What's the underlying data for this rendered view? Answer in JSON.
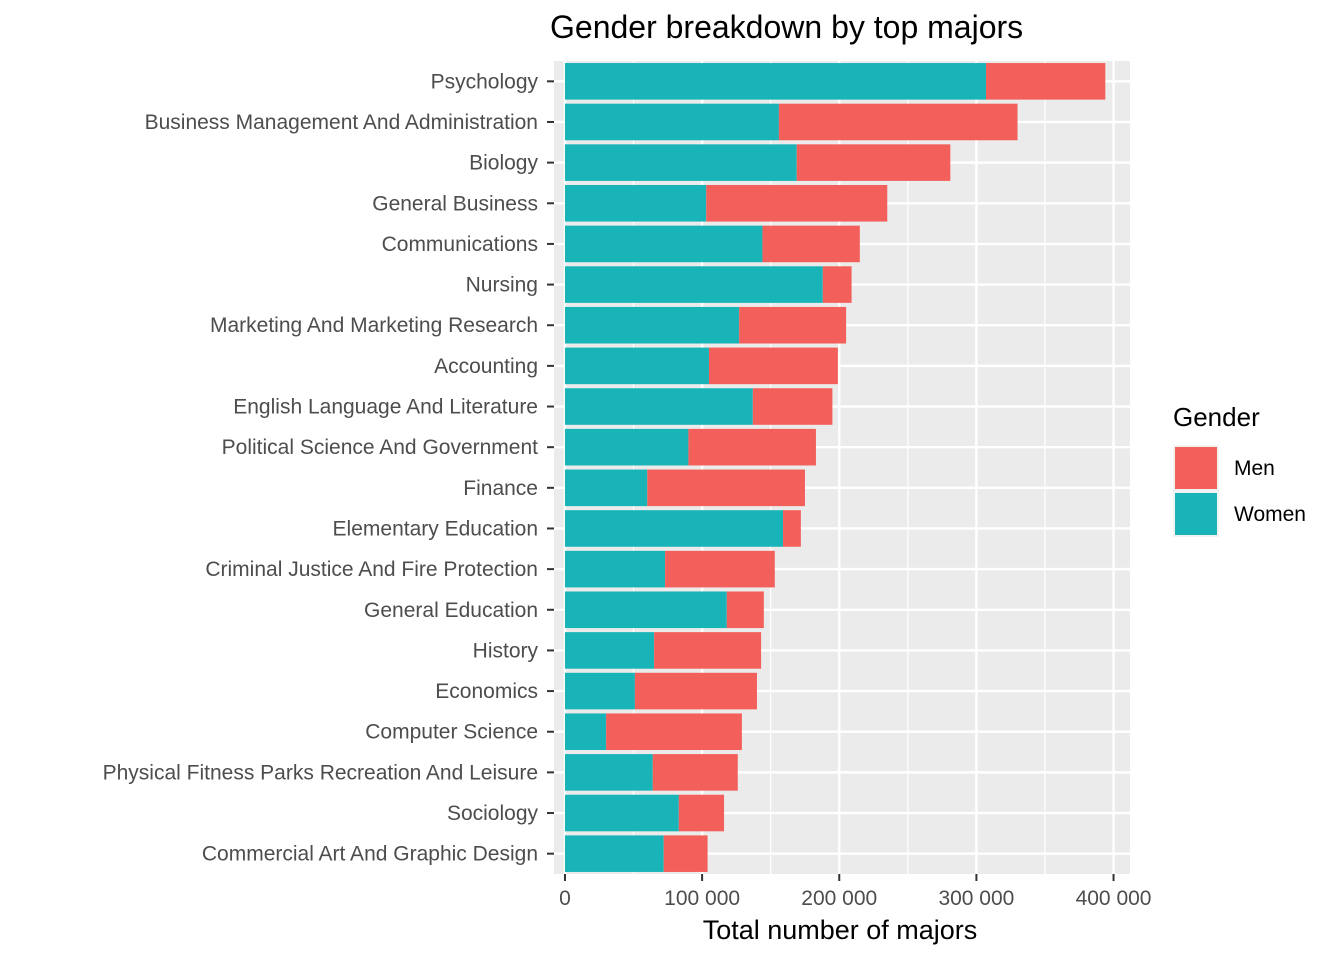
{
  "chart_data": {
    "type": "bar",
    "orientation": "horizontal",
    "stacked": true,
    "title": "Gender breakdown by top majors",
    "xlabel": "Total number of majors",
    "ylabel": "",
    "xlim": [
      -8000,
      412000
    ],
    "x_ticks": [
      0,
      100000,
      200000,
      300000,
      400000
    ],
    "x_tick_labels": [
      "0",
      "100 000",
      "200 000",
      "300 000",
      "400 000"
    ],
    "grid": true,
    "legend_position": "right",
    "legend_title": "Gender",
    "categories": [
      "Psychology",
      "Business Management And Administration",
      "Biology",
      "General Business",
      "Communications",
      "Nursing",
      "Marketing And Marketing Research",
      "Accounting",
      "English Language And Literature",
      "Political Science And Government",
      "Finance",
      "Elementary Education",
      "Criminal Justice And Fire Protection",
      "General Education",
      "History",
      "Economics",
      "Computer Science",
      "Physical Fitness Parks Recreation And Leisure",
      "Sociology",
      "Commercial Art And Graphic Design"
    ],
    "series": [
      {
        "name": "Women",
        "color": "#19b4b8",
        "values": [
          307000,
          156000,
          169000,
          103000,
          144000,
          188000,
          127000,
          105000,
          137000,
          90000,
          60000,
          159000,
          73000,
          118000,
          65000,
          51000,
          30000,
          64000,
          83000,
          72000
        ]
      },
      {
        "name": "Men",
        "color": "#f3605b",
        "values": [
          87000,
          174000,
          112000,
          132000,
          71000,
          21000,
          78000,
          94000,
          58000,
          93000,
          115000,
          13000,
          80000,
          27000,
          78000,
          89000,
          99000,
          62000,
          33000,
          32000
        ]
      }
    ],
    "legend_order": [
      "Men",
      "Women"
    ]
  }
}
